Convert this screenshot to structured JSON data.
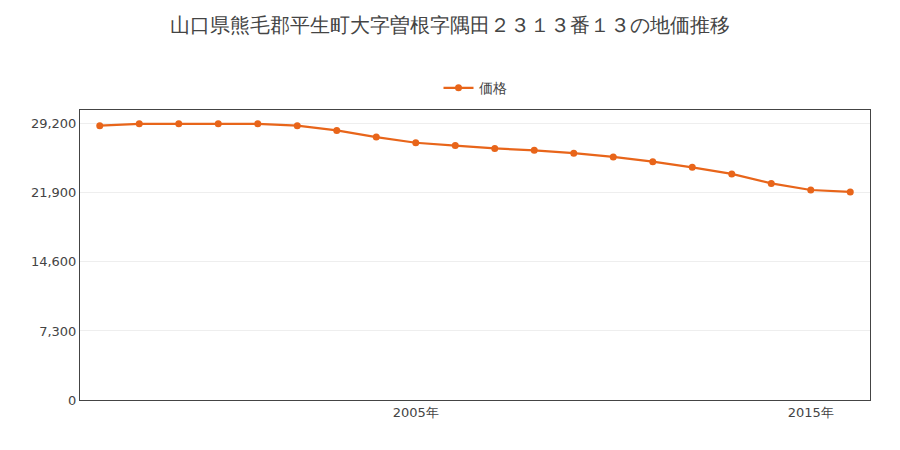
{
  "chart_data": {
    "type": "line",
    "title": "山口県熊毛郡平生町大字曽根字隅田２３１３番１３の地価推移",
    "x": [
      1997,
      1998,
      1999,
      2000,
      2001,
      2002,
      2003,
      2004,
      2005,
      2006,
      2007,
      2008,
      2009,
      2010,
      2011,
      2012,
      2013,
      2014,
      2015,
      2016
    ],
    "series": [
      {
        "name": "価格",
        "color": "#e8651a",
        "marker": "circle",
        "values": [
          29000,
          29200,
          29200,
          29200,
          29200,
          29000,
          28500,
          27800,
          27200,
          26900,
          26600,
          26400,
          26100,
          25700,
          25200,
          24600,
          23900,
          22900,
          22200,
          22000
        ]
      }
    ],
    "xlim": [
      1996.5,
      2016.5
    ],
    "xticks": [
      {
        "value": 2005,
        "label": "2005年"
      },
      {
        "value": 2015,
        "label": "2015年"
      }
    ],
    "ylim": [
      0,
      30660
    ],
    "yticks": [
      0,
      {
        "value": 7300,
        "label": "7,300"
      },
      {
        "value": 14600,
        "label": "14,600"
      },
      {
        "value": 21900,
        "label": "21,900"
      },
      {
        "value": 29200,
        "label": "29,200"
      }
    ],
    "grid": "y",
    "legend": "upper center"
  }
}
